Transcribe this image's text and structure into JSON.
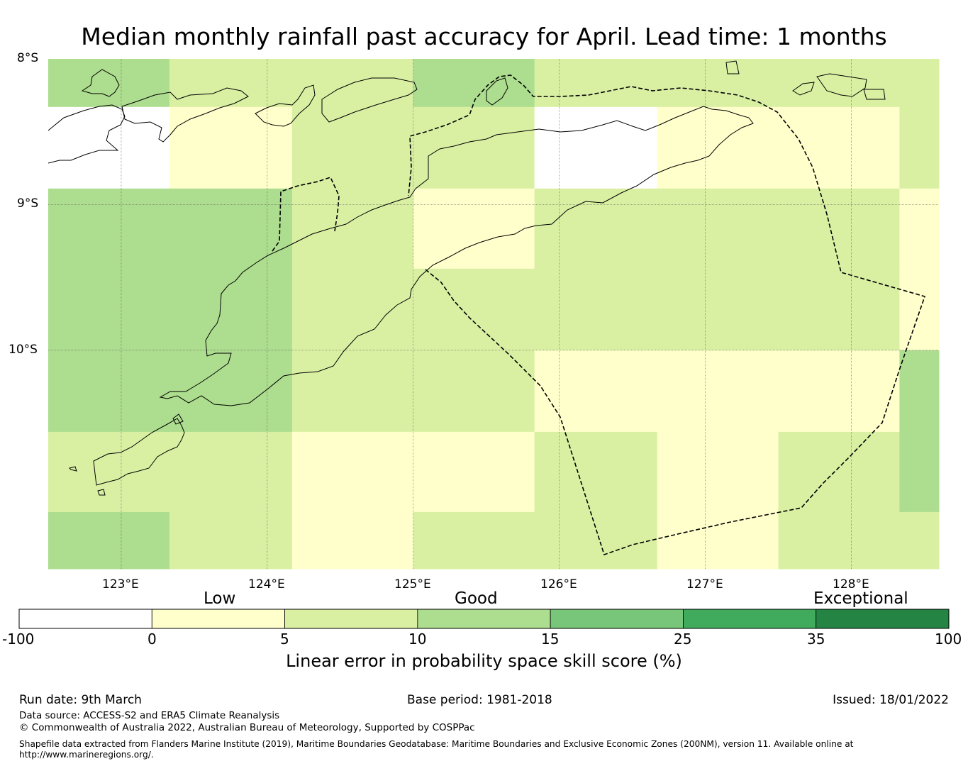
{
  "title": "Median monthly rainfall past accuracy for April. Lead time: 1 months",
  "map": {
    "lat_labels": [
      "8°S",
      "9°S",
      "10°S"
    ],
    "lon_labels": [
      "123°E",
      "124°E",
      "125°E",
      "126°E",
      "127°E",
      "128°E"
    ],
    "extent": {
      "lon": [
        122.5,
        128.6
      ],
      "lat": [
        -11.5,
        -8.0
      ]
    },
    "grid": {
      "lon_edges": [
        122.5,
        123.33,
        124.17,
        125.0,
        125.83,
        126.67,
        127.5,
        128.33,
        128.6
      ],
      "lat_edges": [
        -8.0,
        -8.33,
        -8.89,
        -9.44,
        -10.0,
        -10.56,
        -11.11,
        -11.5
      ],
      "skill_bins": [
        [
          3,
          2,
          2,
          3,
          2,
          2,
          2,
          2
        ],
        [
          0,
          1,
          2,
          2,
          0,
          1,
          1,
          2
        ],
        [
          3,
          3,
          2,
          1,
          2,
          2,
          2,
          1
        ],
        [
          3,
          3,
          2,
          2,
          2,
          2,
          2,
          1
        ],
        [
          3,
          3,
          2,
          2,
          1,
          1,
          1,
          3
        ],
        [
          2,
          2,
          1,
          1,
          2,
          1,
          2,
          3
        ],
        [
          3,
          2,
          1,
          2,
          2,
          1,
          2,
          2
        ]
      ]
    },
    "eez_boundary": "dashed",
    "coastline": "thin-black"
  },
  "colorbar": {
    "categories": [
      "Low",
      "Good",
      "Exceptional"
    ],
    "ticks": [
      "-100",
      "0",
      "5",
      "10",
      "15",
      "25",
      "35",
      "100"
    ],
    "colors": [
      "#ffffff",
      "#ffffcc",
      "#d9f0a3",
      "#addd8e",
      "#78c679",
      "#41ab5d",
      "#238443"
    ],
    "label": "Linear error in probability space skill score (%)"
  },
  "footer": {
    "run_date": "Run date: 9th March",
    "base_period": "Base period: 1981-2018",
    "issued": "Issued: 18/01/2022",
    "data_source": "Data source: ACCESS-S2 and ERA5 Climate Reanalysis",
    "copyright": "© Commonwealth of Australia 2022, Australian Bureau of Meteorology, Supported by COSPPac",
    "shapefile_line1": "Shapefile data extracted from Flanders Marine Institute (2019), Maritime Boundaries Geodatabase: Maritime Boundaries and Exclusive Economic Zones (200NM), version 11. Available online at",
    "shapefile_line2": "http://www.marineregions.org/."
  }
}
